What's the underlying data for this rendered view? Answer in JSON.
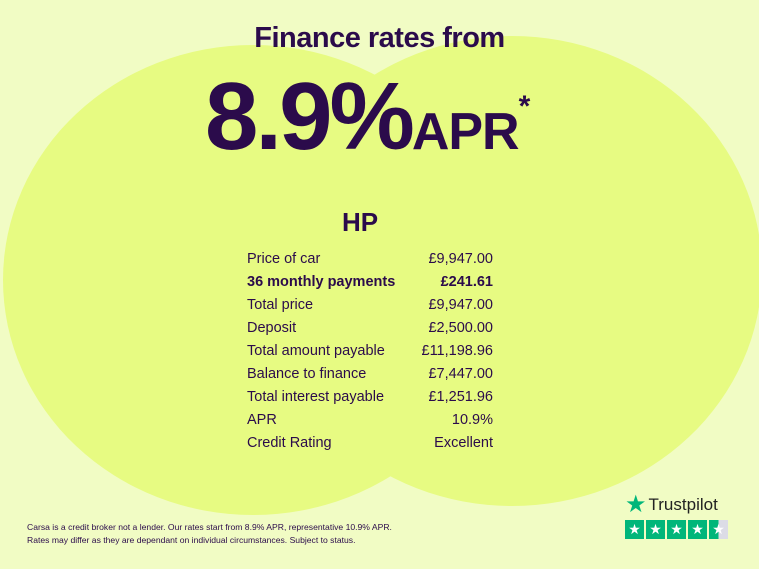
{
  "headline": "Finance rates from",
  "rate": "8.9%",
  "rate_unit": "APR",
  "asterisk": "*",
  "product": "HP",
  "rows": [
    {
      "label": "Price of car",
      "value": "£9,947.00"
    },
    {
      "label": "36 monthly payments",
      "value": "£241.61",
      "bold": true
    },
    {
      "label": "Total price",
      "value": "£9,947.00"
    },
    {
      "label": "Deposit",
      "value": "£2,500.00"
    },
    {
      "label": "Total amount payable",
      "value": "£11,198.96"
    },
    {
      "label": "Balance to finance",
      "value": "£7,447.00"
    },
    {
      "label": "Total interest payable",
      "value": "£1,251.96"
    },
    {
      "label": "APR",
      "value": "10.9%"
    },
    {
      "label": "Credit Rating",
      "value": "Excellent"
    }
  ],
  "disclaimer": {
    "line1": "Carsa is a credit broker not a lender. Our rates start from 8.9% APR, representative 10.9% APR.",
    "line2": "Rates may differ as they are dependant on individual circumstances. Subject to status."
  },
  "trustpilot": {
    "name": "Trustpilot",
    "rating_stars": 4.5,
    "max_stars": 5,
    "icon": "star-icon",
    "color": "#00b67a"
  },
  "colors": {
    "text": "#2b0b4b",
    "background": "#f1fcc4",
    "circles": "#e7fb82"
  }
}
